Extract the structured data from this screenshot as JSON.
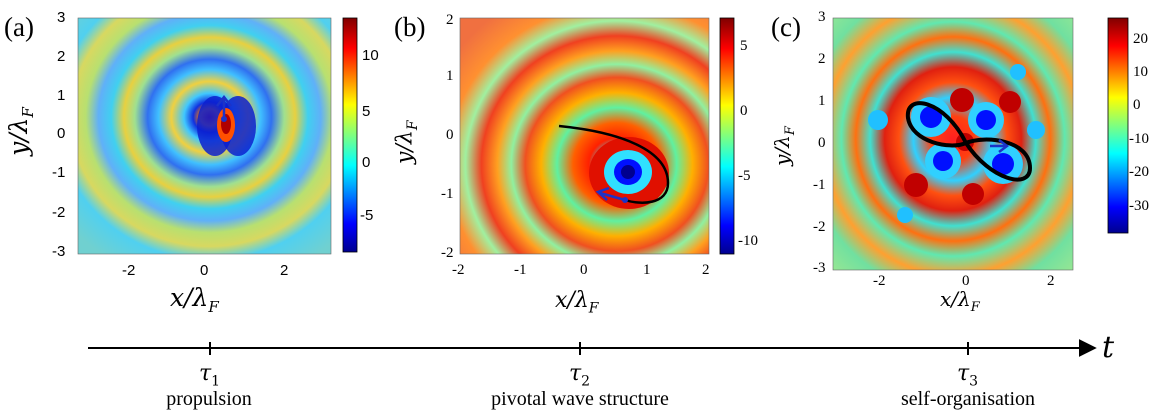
{
  "panels": [
    {
      "letter": "(a)",
      "xticks": [
        "-2",
        "0",
        "2"
      ],
      "yticks": [
        "3",
        "2",
        "1",
        "0",
        "-1",
        "-2",
        "-3"
      ],
      "xlabel": "x/λ",
      "xlabel_sub": "F",
      "ylabel": "y/λ",
      "ylabel_sub": "F",
      "colorbar_ticks": [
        "10",
        "5",
        "0",
        "-5"
      ]
    },
    {
      "letter": "(b)",
      "xticks": [
        "-2",
        "-1",
        "0",
        "1",
        "2"
      ],
      "yticks": [
        "2",
        "1",
        "0",
        "-1",
        "-2"
      ],
      "xlabel": "x/λ",
      "xlabel_sub": "F",
      "ylabel": "y/λ",
      "ylabel_sub": "F",
      "colorbar_ticks": [
        "5",
        "0",
        "-5",
        "-10"
      ]
    },
    {
      "letter": "(c)",
      "xticks": [
        "-2",
        "0",
        "2"
      ],
      "yticks": [
        "3",
        "2",
        "1",
        "0",
        "-1",
        "-2",
        "-3"
      ],
      "xlabel": "x/λ",
      "xlabel_sub": "F",
      "ylabel": "y/λ",
      "ylabel_sub": "F",
      "colorbar_ticks": [
        "20",
        "10",
        "0",
        "-10",
        "-20",
        "-30"
      ]
    }
  ],
  "timeline": {
    "axis_label": "t",
    "stages": [
      {
        "tau": "τ",
        "sub": "1",
        "caption": "propulsion"
      },
      {
        "tau": "τ",
        "sub": "2",
        "caption": "pivotal wave structure"
      },
      {
        "tau": "τ",
        "sub": "3",
        "caption": "self-organisation"
      }
    ]
  },
  "colors": {
    "jet_low": "#00008f",
    "jet_mid": "#7fff7f",
    "jet_high": "#800000",
    "trajectory": "#000000",
    "arrow": "#1c33c8"
  }
}
